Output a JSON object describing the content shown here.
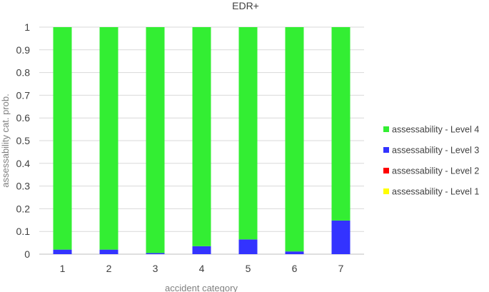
{
  "chart_data": {
    "type": "bar",
    "stacked": true,
    "title": "EDR+",
    "xlabel": "accident category",
    "ylabel": "assessability cat. prob.",
    "categories": [
      "1",
      "2",
      "3",
      "4",
      "5",
      "6",
      "7"
    ],
    "ylim": [
      0,
      1
    ],
    "yticks": [
      "0",
      "0.1",
      "0.2",
      "0.3",
      "0.4",
      "0.5",
      "0.6",
      "0.7",
      "0.8",
      "0.9",
      "1"
    ],
    "grid": true,
    "legend_position": "right",
    "series": [
      {
        "name": "assessability - Level 1",
        "color": "#FFFF00",
        "values": [
          0,
          0,
          0,
          0,
          0,
          0,
          0
        ]
      },
      {
        "name": "assessability - Level 2",
        "color": "#FF0000",
        "values": [
          0,
          0,
          0,
          0,
          0,
          0,
          0
        ]
      },
      {
        "name": "assessability - Level 3",
        "color": "#3333FF",
        "values": [
          0.02,
          0.02,
          0.005,
          0.035,
          0.065,
          0.012,
          0.148
        ]
      },
      {
        "name": "assessability - Level 4",
        "color": "#33EE33",
        "values": [
          0.98,
          0.98,
          0.995,
          0.965,
          0.935,
          0.988,
          0.852
        ]
      }
    ],
    "legend_order": [
      "assessability - Level 4",
      "assessability - Level 3",
      "assessability - Level 2",
      "assessability - Level 1"
    ]
  }
}
